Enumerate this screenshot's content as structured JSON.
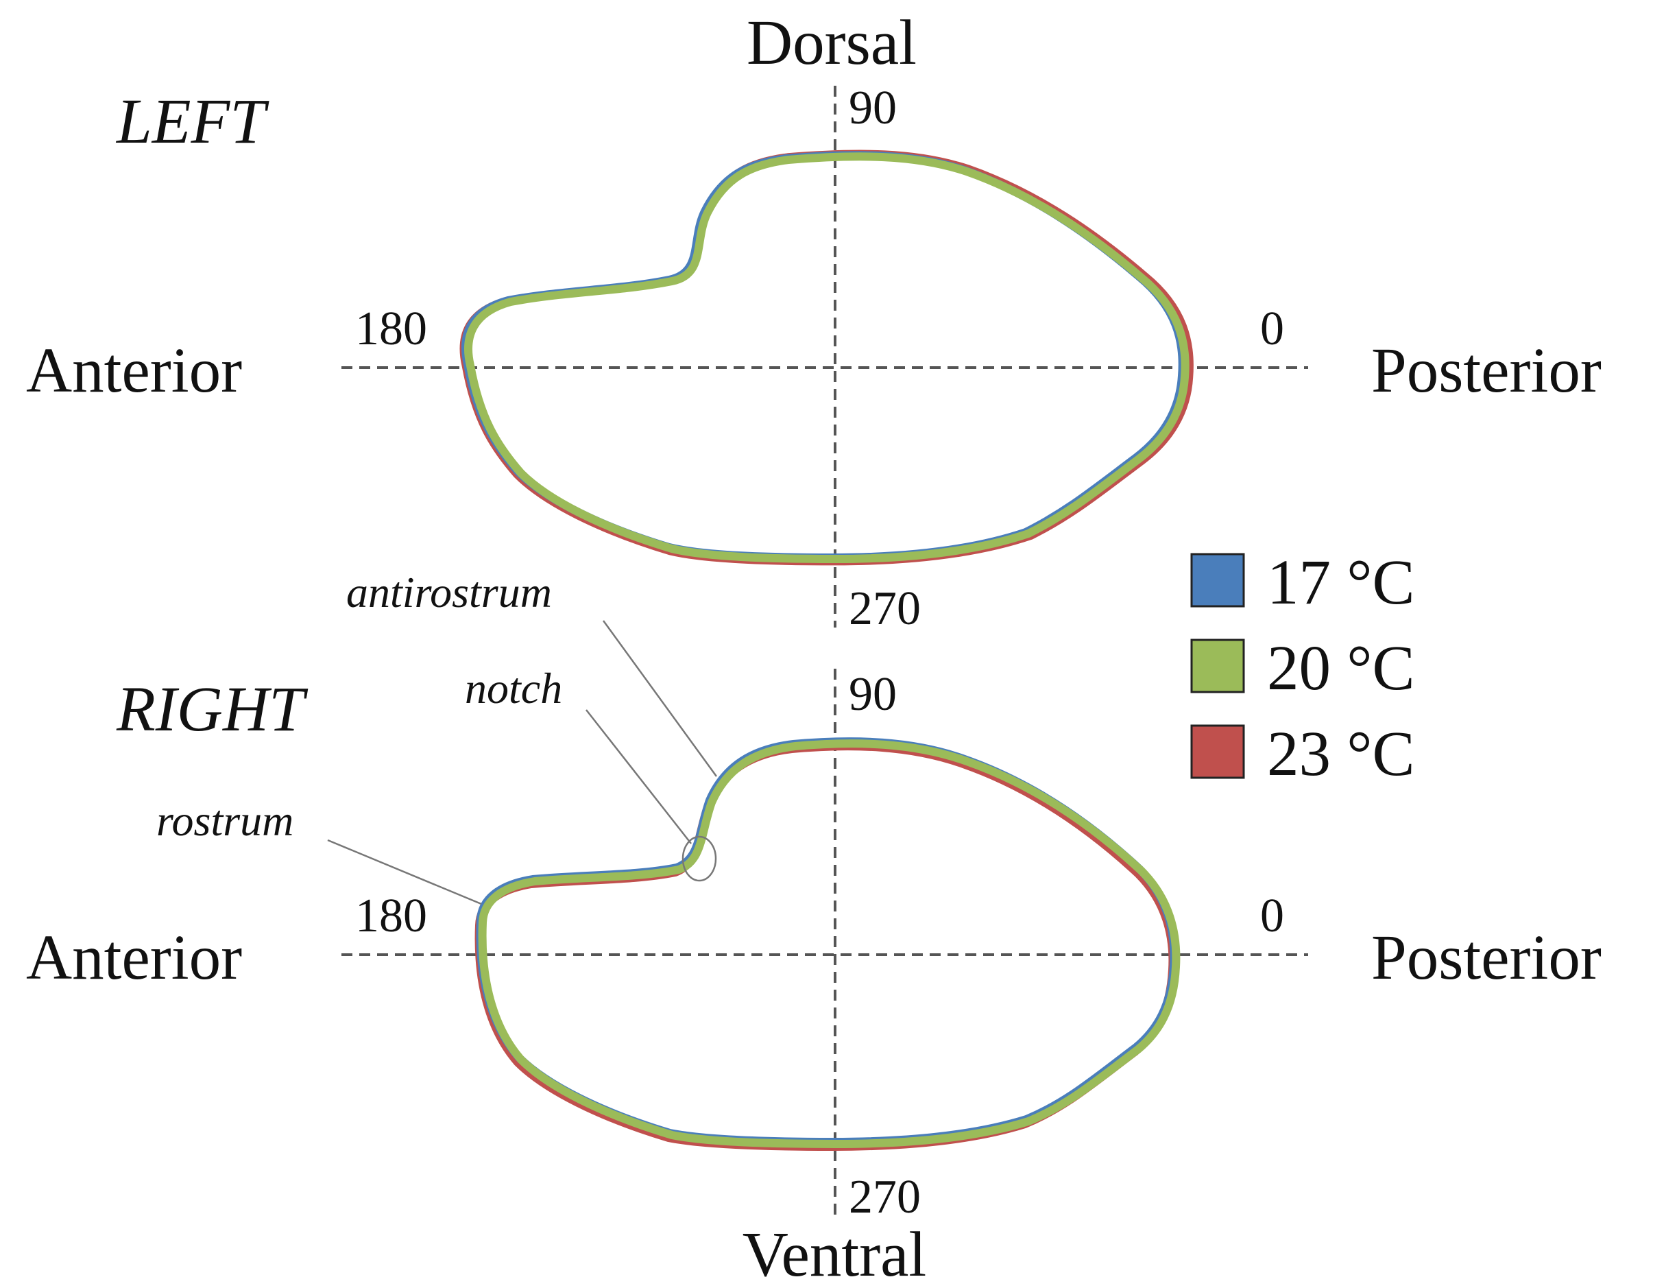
{
  "directions": {
    "dorsal": "Dorsal",
    "ventral": "Ventral",
    "anterior": "Anterior",
    "posterior": "Posterior"
  },
  "panels": [
    {
      "title": "LEFT",
      "angles": {
        "a0": "0",
        "a90": "90",
        "a180": "180",
        "a270": "270"
      }
    },
    {
      "title": "RIGHT",
      "angles": {
        "a0": "0",
        "a90": "90",
        "a180": "180",
        "a270": "270"
      }
    }
  ],
  "annotations": {
    "antirostrum": "antirostrum",
    "notch": "notch",
    "rostrum": "rostrum"
  },
  "legend": [
    {
      "label": "17 °C",
      "color": "#4a7ebb"
    },
    {
      "label": "20 °C",
      "color": "#9bbb59"
    },
    {
      "label": "23 °C",
      "color": "#c0504d"
    }
  ]
}
